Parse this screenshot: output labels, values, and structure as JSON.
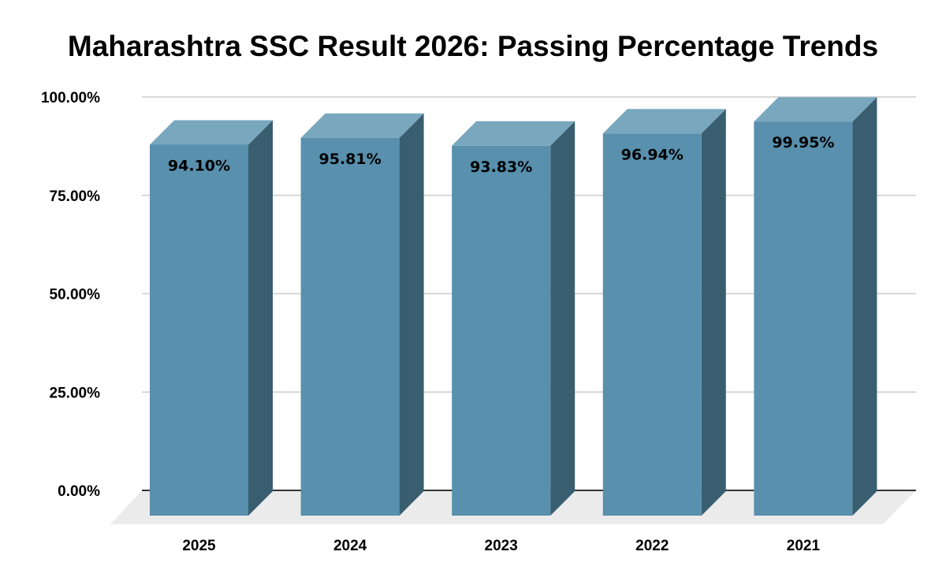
{
  "chart_data": {
    "type": "bar",
    "style": "3d",
    "title": "Maharashtra SSC Result 2026: Passing Percentage Trends",
    "xlabel": "",
    "ylabel": "",
    "categories": [
      "2025",
      "2024",
      "2023",
      "2022",
      "2021"
    ],
    "values": [
      94.1,
      95.81,
      93.83,
      96.94,
      99.95
    ],
    "data_labels": [
      "94.10%",
      "95.81%",
      "93.83%",
      "96.94%",
      "99.95%"
    ],
    "ylim": [
      0,
      100
    ],
    "yticks": [
      0,
      25,
      50,
      75,
      100
    ],
    "ytick_labels": [
      "0.00%",
      "25.00%",
      "50.00%",
      "75.00%",
      "100.00%"
    ],
    "grid": true,
    "legend": "none",
    "colors": {
      "front": "#5890ae",
      "side": "#395e70",
      "top": "#78a7be",
      "floor": "#ebebeb",
      "grid": "#cccccc",
      "baseline": "#333333"
    }
  }
}
